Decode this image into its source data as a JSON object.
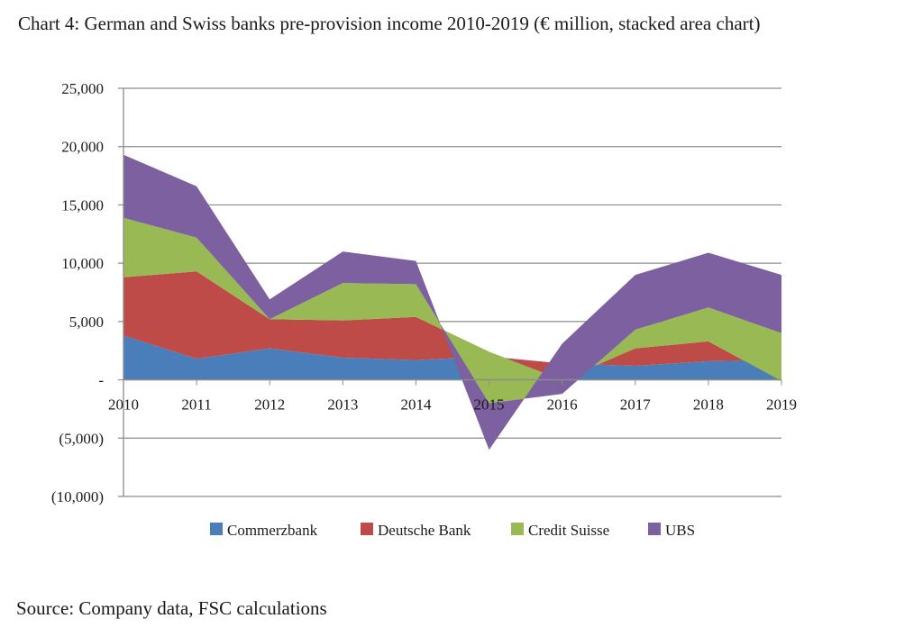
{
  "title": "Chart 4: German and Swiss banks pre-provision income 2010-2019 (€ million, stacked area chart)",
  "source": "Source: Company data, FSC calculations",
  "chart_data": {
    "type": "area",
    "stacked": true,
    "x": [
      "2010",
      "2011",
      "2012",
      "2013",
      "2014",
      "2015",
      "2016",
      "2017",
      "2018",
      "2019"
    ],
    "series": [
      {
        "name": "Commerzbank",
        "color": "#4a7ebb",
        "values": [
          3800,
          1800,
          2700,
          1900,
          1700,
          2000,
          1400,
          1200,
          1600,
          1700
        ]
      },
      {
        "name": "Deutsche Bank",
        "color": "#be4b48",
        "values": [
          5000,
          7500,
          2500,
          3200,
          3700,
          400,
          -1400,
          1500,
          1700,
          -1800
        ]
      },
      {
        "name": "Credit Suisse",
        "color": "#98b954",
        "values": [
          5100,
          2900,
          0,
          3200,
          2800,
          -4400,
          -1200,
          1600,
          2900,
          4100
        ]
      },
      {
        "name": "UBS",
        "color": "#7d60a0",
        "values": [
          5400,
          4400,
          1700,
          2700,
          2000,
          -4000,
          4300,
          4700,
          4700,
          5000
        ]
      }
    ],
    "y_ticks": [
      "25,000",
      "20,000",
      "15,000",
      "10,000",
      "5,000",
      "-",
      "(5,000)",
      "(10,000)"
    ],
    "ylim": [
      -10000,
      25000
    ],
    "grid": true,
    "legend": "bottom"
  }
}
